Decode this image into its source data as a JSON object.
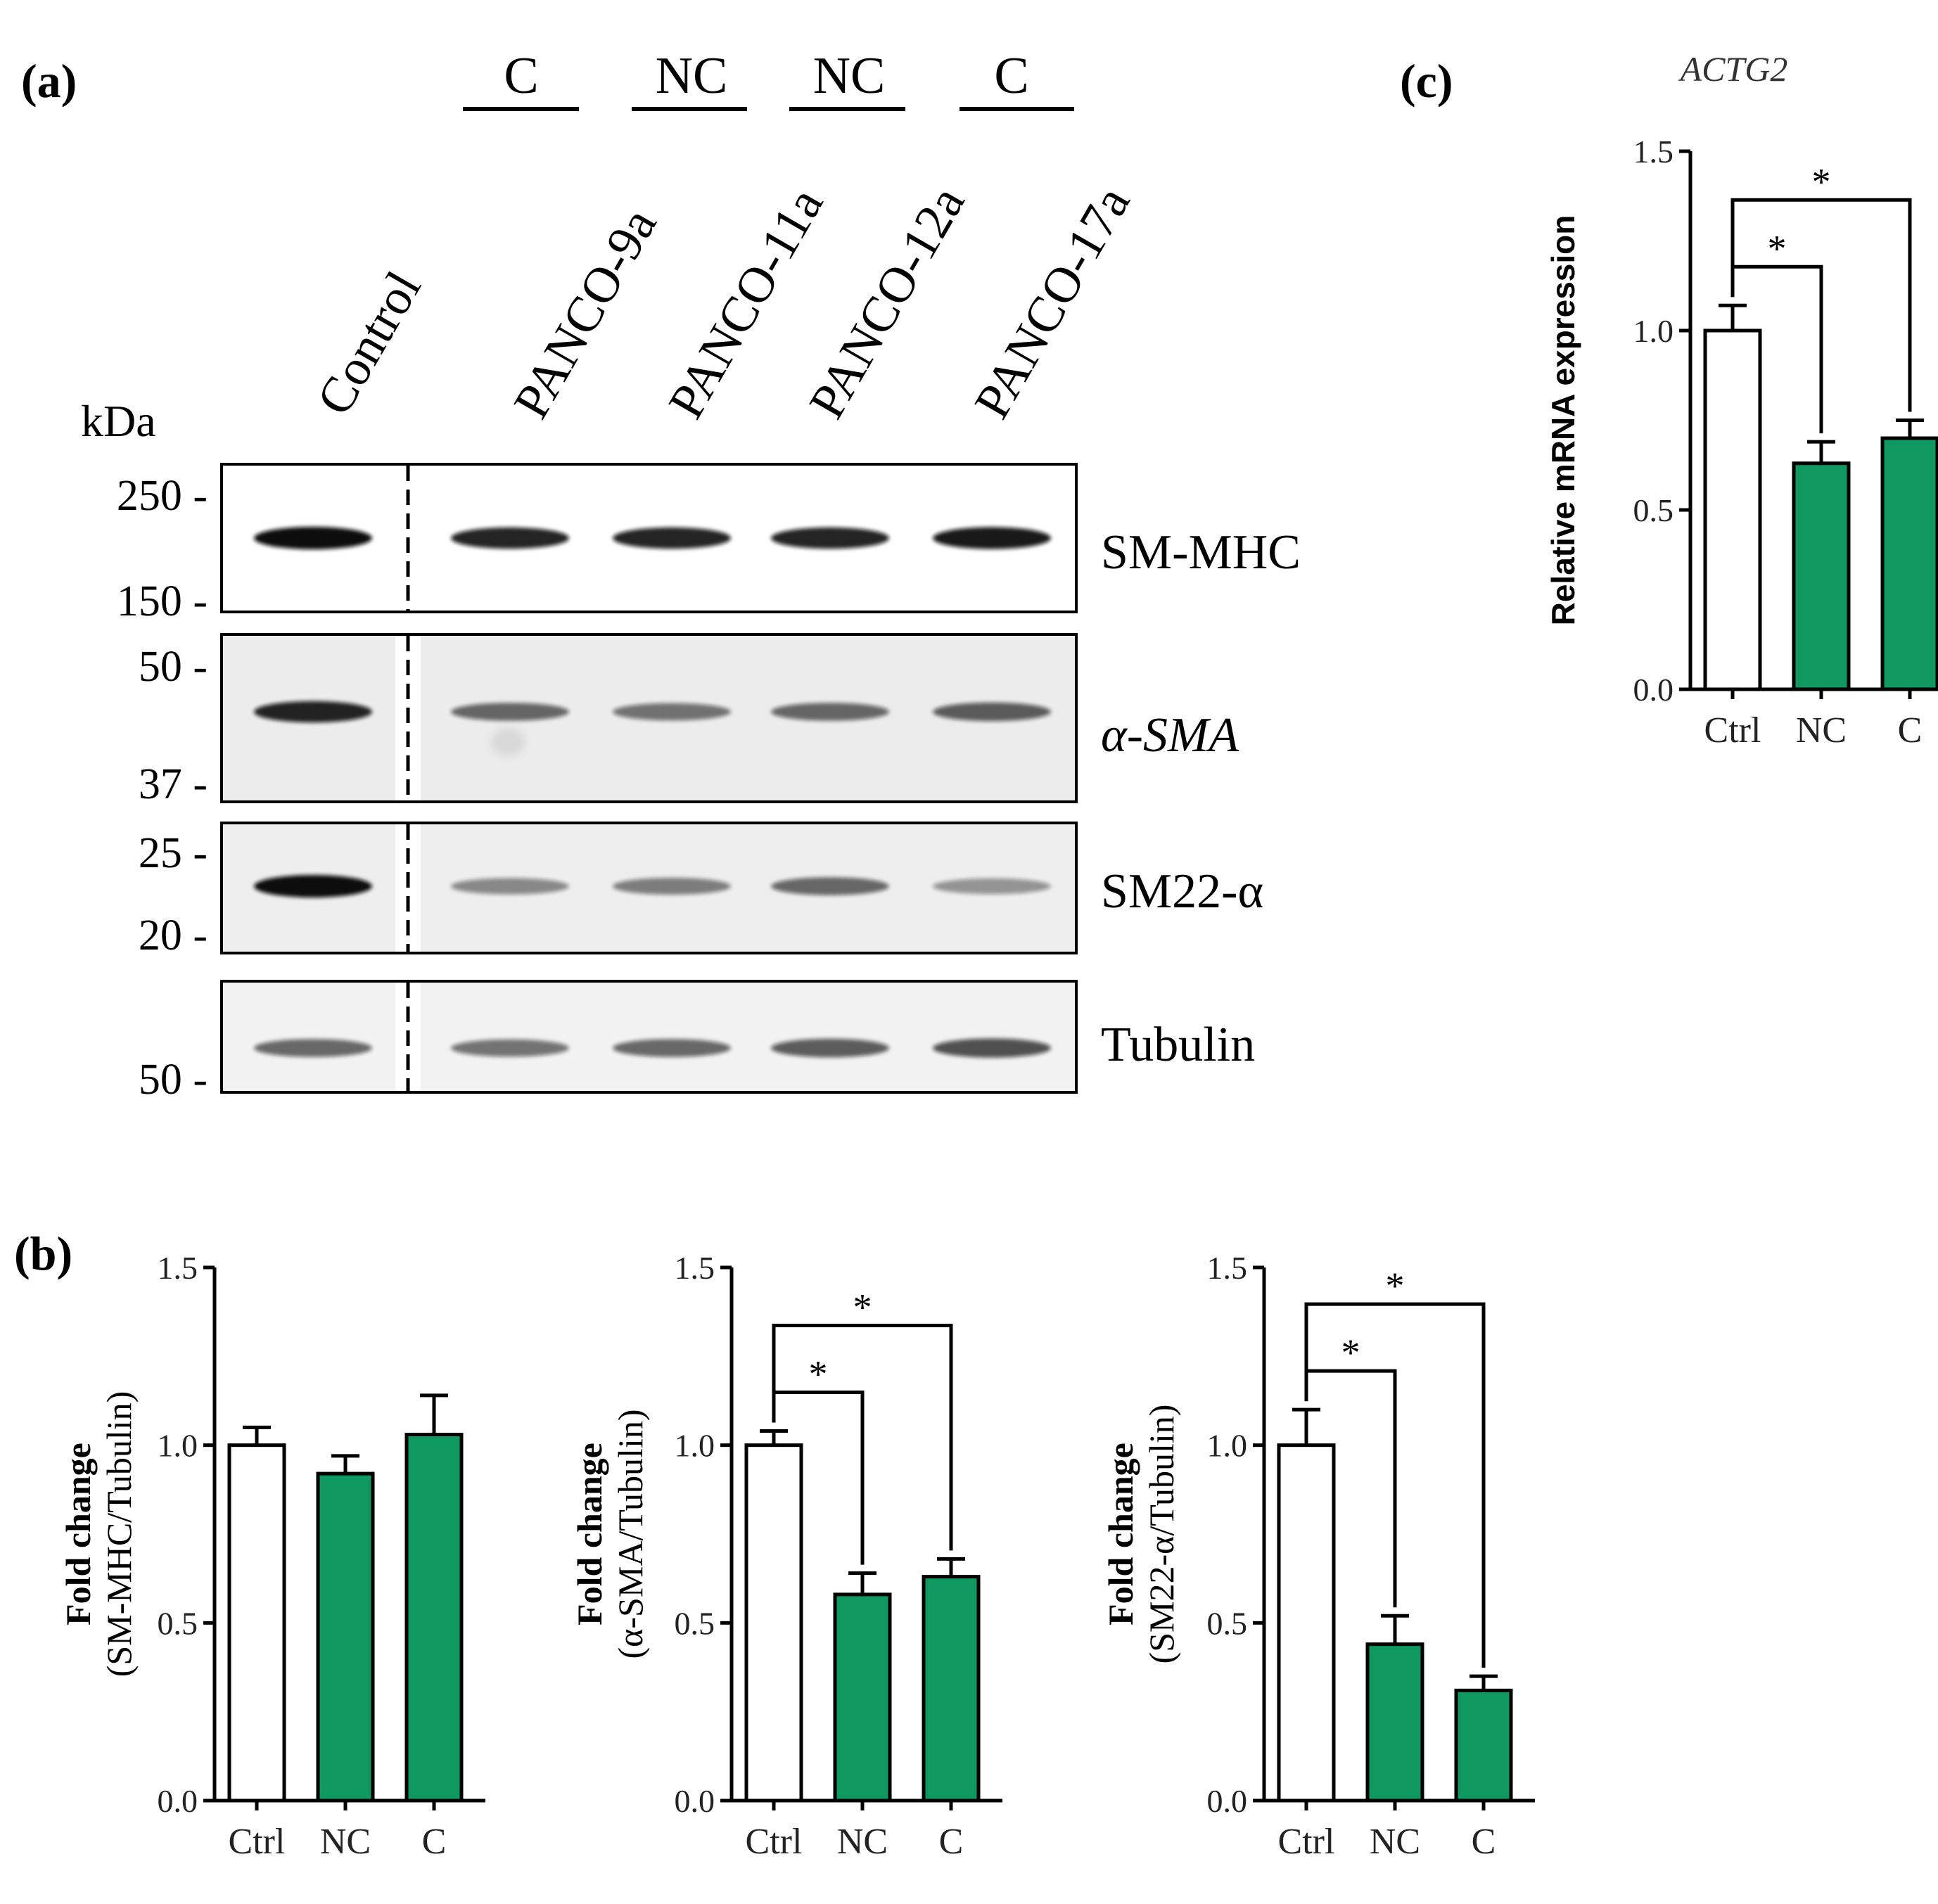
{
  "panels": {
    "a": {
      "label": "(a)",
      "kda_label": "kDa",
      "groups": [
        {
          "label": "C"
        },
        {
          "label": "NC"
        },
        {
          "label": "NC"
        },
        {
          "label": "C"
        }
      ],
      "lanes": [
        "Control",
        "PANCO-9a",
        "PANCO-11a",
        "PANCO-12a",
        "PANCO-17a"
      ],
      "blots": [
        {
          "name": "SM-MHC",
          "markers": [
            "250 -",
            "150 -"
          ],
          "intensity": [
            1.0,
            0.9,
            0.9,
            0.9,
            0.95
          ]
        },
        {
          "name": "α-SMA",
          "markers": [
            "50 -",
            "37 -"
          ],
          "intensity": [
            0.9,
            0.6,
            0.55,
            0.6,
            0.65
          ]
        },
        {
          "name": "SM22-α",
          "markers": [
            "25 -",
            "20 -"
          ],
          "intensity": [
            1.0,
            0.45,
            0.5,
            0.6,
            0.4
          ]
        },
        {
          "name": "Tubulin",
          "markers": [
            "50 -"
          ],
          "intensity": [
            0.6,
            0.55,
            0.6,
            0.65,
            0.7
          ]
        }
      ]
    },
    "b": {
      "label": "(b)"
    },
    "c": {
      "label": "(c)",
      "gene": "ACTG2"
    }
  },
  "chart_data": [
    {
      "id": "b1",
      "type": "bar",
      "categories": [
        "Ctrl",
        "NC",
        "C"
      ],
      "values": [
        1.0,
        0.92,
        1.03
      ],
      "errors": [
        0.05,
        0.05,
        0.11
      ],
      "colors": [
        "#ffffff",
        "#0f9960",
        "#0f9960"
      ],
      "ylabel_bold": "Fold change",
      "ylabel_normal": "(SM-MHC/Tubulin)",
      "ylim": [
        0,
        1.5
      ],
      "yticks": [
        "0.0",
        "0.5",
        "1.0",
        "1.5"
      ],
      "significance": []
    },
    {
      "id": "b2",
      "type": "bar",
      "categories": [
        "Ctrl",
        "NC",
        "C"
      ],
      "values": [
        1.0,
        0.58,
        0.63
      ],
      "errors": [
        0.04,
        0.06,
        0.05
      ],
      "colors": [
        "#ffffff",
        "#0f9960",
        "#0f9960"
      ],
      "ylabel_bold": "Fold change",
      "ylabel_normal": "(α-SMA/Tubulin)",
      "ylim": [
        0,
        1.5
      ],
      "yticks": [
        "0.0",
        "0.5",
        "1.0",
        "1.5"
      ],
      "significance": [
        {
          "from": 0,
          "to": 1,
          "label": "*"
        },
        {
          "from": 0,
          "to": 2,
          "label": "*"
        }
      ]
    },
    {
      "id": "b3",
      "type": "bar",
      "categories": [
        "Ctrl",
        "NC",
        "C"
      ],
      "values": [
        1.0,
        0.44,
        0.31
      ],
      "errors": [
        0.1,
        0.08,
        0.04
      ],
      "colors": [
        "#ffffff",
        "#0f9960",
        "#0f9960"
      ],
      "ylabel_bold": "Fold change",
      "ylabel_normal": "(SM22-α/Tubulin)",
      "ylim": [
        0,
        1.5
      ],
      "yticks": [
        "0.0",
        "0.5",
        "1.0",
        "1.5"
      ],
      "significance": [
        {
          "from": 0,
          "to": 1,
          "label": "*"
        },
        {
          "from": 0,
          "to": 2,
          "label": "*"
        }
      ]
    },
    {
      "id": "c",
      "type": "bar",
      "categories": [
        "Ctrl",
        "NC",
        "C"
      ],
      "values": [
        1.0,
        0.63,
        0.7
      ],
      "errors": [
        0.07,
        0.06,
        0.05
      ],
      "colors": [
        "#ffffff",
        "#0f9960",
        "#0f9960"
      ],
      "ylabel_bold": "Relative mRNA expression",
      "ylabel_normal": "",
      "ylim": [
        0,
        1.5
      ],
      "yticks": [
        "0.0",
        "0.5",
        "1.0",
        "1.5"
      ],
      "significance": [
        {
          "from": 0,
          "to": 1,
          "label": "*"
        },
        {
          "from": 0,
          "to": 2,
          "label": "*"
        }
      ]
    }
  ]
}
